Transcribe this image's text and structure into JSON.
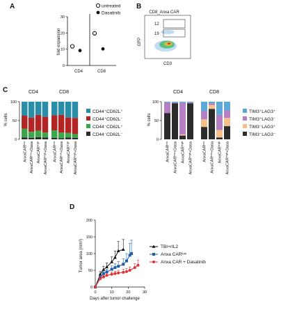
{
  "chart_data": [
    {
      "panel": "A",
      "type": "scatter",
      "ylabel": "fold expansion",
      "categories": [
        "CD4",
        "CD8"
      ],
      "ylim": [
        0,
        30
      ],
      "yticks": [
        0,
        10,
        20,
        30
      ],
      "legend": {
        "placement": "top-right",
        "entries": [
          "untreated",
          "Dasatinib"
        ]
      },
      "series": [
        {
          "name": "untreated",
          "marker": "open-circle",
          "values": [
            11.8,
            19.8
          ]
        },
        {
          "name": "Dasatinib",
          "marker": "filled-circle",
          "values": [
            9.2,
            10.2
          ]
        }
      ]
    },
    {
      "panel": "B",
      "type": "scatter",
      "title": "CD8_Anxa CAR",
      "xlabel": "CD3",
      "ylabel": "GFP",
      "gates": [
        12,
        19
      ]
    },
    {
      "panel": "C-left",
      "type": "bar",
      "stacked": true,
      "ylabel": "% cells",
      "ylim": [
        0,
        100
      ],
      "yticks": [
        0,
        50,
        100
      ],
      "groups": [
        "CD4",
        "CD8"
      ],
      "categories": [
        "AnxaCARˡᵒʷ",
        "AnxaCARˡᵒʷ+Dasa",
        "AnxaCARʰⁱᵍʰ",
        "AnxaCARʰⁱᵍʰ+Dasa"
      ],
      "legend": {
        "placement": "right",
        "entries": [
          "CD44⁺CD62L⁺",
          "CD44⁺CD62L⁻",
          "CD44⁻CD62L⁺",
          "CD44⁻CD62L⁻"
        ]
      },
      "colors": [
        "#2a8ea8",
        "#b32424",
        "#3aa84a",
        "#2c2c2c"
      ],
      "series": [
        {
          "name": "CD44⁻CD62L⁻",
          "values": [
            [
              5,
              4,
              6,
              5
            ],
            [
              4,
              3,
              5,
              4
            ]
          ]
        },
        {
          "name": "CD44⁻CD62L⁺",
          "values": [
            [
              23,
              16,
              17,
              13
            ],
            [
              20,
              15,
              12,
              10
            ]
          ]
        },
        {
          "name": "CD44⁺CD62L⁻",
          "values": [
            [
              35,
              38,
              42,
              42
            ],
            [
              40,
              47,
              41,
              43
            ]
          ]
        },
        {
          "name": "CD44⁺CD62L⁺",
          "values": [
            [
              37,
              42,
              35,
              40
            ],
            [
              36,
              35,
              42,
              43
            ]
          ]
        }
      ]
    },
    {
      "panel": "C-right",
      "type": "bar",
      "stacked": true,
      "ylabel": "% cells",
      "ylim": [
        0,
        100
      ],
      "yticks": [
        0,
        50,
        100
      ],
      "groups": [
        "CD4",
        "CD8"
      ],
      "categories": [
        "AnxaCARˡᵒʷ",
        "AnxaCARˡᵒʷ+Dasa",
        "AnxaCARʰⁱᵍʰ",
        "AnxaCARʰⁱᵍʰ+Dasa"
      ],
      "legend": {
        "placement": "right",
        "entries": [
          "TIM3⁺LAG3⁺",
          "TIM3⁺LAG3⁻",
          "TIM3⁻LAG3⁺",
          "TIM3⁻LAG3⁻"
        ]
      },
      "colors": [
        "#5aa9d6",
        "#b57fc4",
        "#f4bf8a",
        "#2c2c2c"
      ],
      "series": [
        {
          "name": "TIM3⁻LAG3⁻",
          "values": [
            [
              70,
              96,
              10,
              96
            ],
            [
              33,
              81,
              5,
              35
            ]
          ]
        },
        {
          "name": "TIM3⁻LAG3⁺",
          "values": [
            [
              0,
              0,
              3,
              0
            ],
            [
              20,
              10,
              20,
              22
            ]
          ]
        },
        {
          "name": "TIM3⁺LAG3⁻",
          "values": [
            [
              28,
              2,
              84,
              2
            ],
            [
              22,
              5,
              40,
              20
            ]
          ]
        },
        {
          "name": "TIM3⁺LAG3⁺",
          "values": [
            [
              2,
              2,
              3,
              2
            ],
            [
              25,
              4,
              35,
              23
            ]
          ]
        }
      ]
    },
    {
      "panel": "D",
      "type": "line",
      "xlabel": "Days after tumor challenge",
      "ylabel": "Tumor area (mm²)",
      "xlim": [
        0,
        30
      ],
      "ylim": [
        0,
        200
      ],
      "xticks": [
        0,
        10,
        20,
        30
      ],
      "yticks": [
        0,
        50,
        100,
        150,
        200
      ],
      "legend": {
        "placement": "right",
        "entries": [
          "TBI+rIL2",
          "Anxa CARˡᵒʷ",
          "Anxa CAR + Dasatinib"
        ]
      },
      "series": [
        {
          "name": "TBI+rIL2",
          "color": "#111111",
          "marker": "triangle",
          "x": [
            0,
            3,
            5,
            7,
            10,
            12,
            14,
            17
          ],
          "y": [
            0,
            38,
            52,
            60,
            75,
            88,
            108,
            112
          ],
          "err": [
            0,
            8,
            10,
            12,
            15,
            20,
            28,
            30
          ]
        },
        {
          "name": "Anxa CARˡᵒʷ",
          "color": "#1f5fa8",
          "marker": "square",
          "x": [
            0,
            3,
            5,
            7,
            10,
            12,
            14,
            17,
            19,
            21,
            22
          ],
          "y": [
            0,
            30,
            40,
            45,
            53,
            58,
            62,
            68,
            78,
            95,
            100
          ],
          "err": [
            0,
            5,
            6,
            8,
            10,
            12,
            14,
            16,
            22,
            35,
            40
          ]
        },
        {
          "name": "Anxa CAR + Dasatinib",
          "color": "#e03434",
          "marker": "circle",
          "x": [
            0,
            3,
            5,
            7,
            10,
            12,
            14,
            17,
            19,
            21,
            24,
            26
          ],
          "y": [
            0,
            25,
            30,
            35,
            38,
            40,
            42,
            44,
            46,
            50,
            58,
            65
          ],
          "err": [
            0,
            5,
            5,
            6,
            7,
            7,
            8,
            9,
            9,
            10,
            12,
            15
          ]
        }
      ]
    }
  ]
}
